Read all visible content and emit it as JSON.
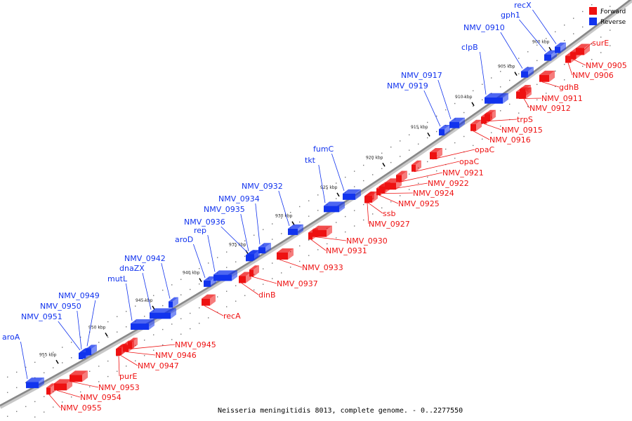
{
  "caption": "Neisseria meningitidis 8013, complete genome. - 0..2277550",
  "legend": [
    {
      "label": "Forward",
      "color": "#ee1111"
    },
    {
      "label": "Reverse",
      "color": "#1133ee"
    }
  ],
  "colors": {
    "forward": "#ee1111",
    "reverse": "#1133ee",
    "backbone": "#888888",
    "ticks": "#222222"
  },
  "kbp_labels": [
    "900 kbp",
    "905 kbp",
    "910 kbp",
    "915 kbp",
    "920 kbp",
    "925 kbp",
    "930 kbp",
    "935 kbp",
    "940 kbp",
    "945 kbp",
    "950 kbp",
    "955 kbp"
  ],
  "reverse_genes": [
    "recX",
    "gph1",
    "NMV_0910",
    "clpB",
    "NMV_0917",
    "NMV_0919",
    "fumC",
    "tkt",
    "NMV_0932",
    "NMV_0934",
    "NMV_0935",
    "NMV_0936",
    "rep",
    "aroD",
    "NMV_0942",
    "dnaZX",
    "mutL",
    "NMV_0949",
    "NMV_0950",
    "NMV_0951",
    "aroA"
  ],
  "forward_genes": [
    "surE",
    "NMV_0905",
    "NMV_0906",
    "gdhB",
    "NMV_0911",
    "NMV_0912",
    "trpS",
    "NMV_0915",
    "NMV_0916",
    "opaC",
    "opaC",
    "NMV_0921",
    "NMV_0922",
    "NMV_0924",
    "NMV_0925",
    "ssb",
    "NMV_0927",
    "NMV_0930",
    "NMV_0931",
    "NMV_0933",
    "NMV_0937",
    "dinB",
    "recA",
    "NMV_0945",
    "NMV_0946",
    "NMV_0947",
    "purE",
    "NMV_0953",
    "NMV_0954",
    "NMV_0955"
  ]
}
